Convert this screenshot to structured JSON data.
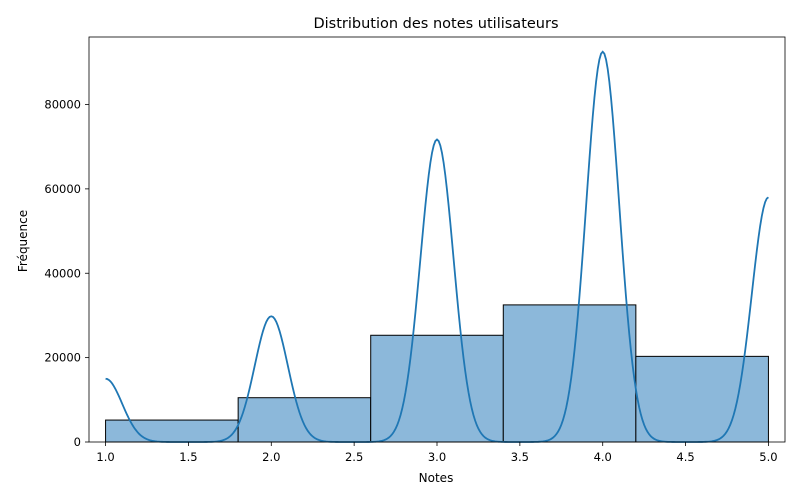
{
  "chart_data": {
    "type": "bar",
    "subtype": "histogram-with-kde",
    "title": "Distribution des notes utilisateurs",
    "xlabel": "Notes",
    "ylabel": "Fréquence",
    "xlim": [
      0.9,
      5.1
    ],
    "ylim": [
      0,
      96000
    ],
    "xticks": [
      1.0,
      1.5,
      2.0,
      2.5,
      3.0,
      3.5,
      4.0,
      4.5,
      5.0
    ],
    "xtick_labels": [
      "1.0",
      "1.5",
      "2.0",
      "2.5",
      "3.0",
      "3.5",
      "4.0",
      "4.5",
      "5.0"
    ],
    "yticks": [
      0,
      20000,
      40000,
      60000,
      80000
    ],
    "ytick_labels": [
      "0",
      "20000",
      "40000",
      "60000",
      "80000"
    ],
    "bins": [
      {
        "x0": 1.0,
        "x1": 1.8,
        "value": 5200
      },
      {
        "x0": 1.8,
        "x1": 2.6,
        "value": 10500
      },
      {
        "x0": 2.6,
        "x1": 3.4,
        "value": 25300
      },
      {
        "x0": 3.4,
        "x1": 4.2,
        "value": 32500
      },
      {
        "x0": 4.2,
        "x1": 5.0,
        "value": 20300
      }
    ],
    "kde": {
      "peaks": [
        {
          "x": 1.0,
          "y": 15000
        },
        {
          "x": 2.0,
          "y": 29800
        },
        {
          "x": 3.0,
          "y": 71700
        },
        {
          "x": 4.0,
          "y": 92500
        },
        {
          "x": 5.0,
          "y": 58000
        }
      ],
      "bandwidth": 0.1
    },
    "grid": false,
    "colors": {
      "bar_fill": "#8cb8da",
      "bar_edge": "#000000",
      "kde_line": "#1f77b4"
    }
  }
}
